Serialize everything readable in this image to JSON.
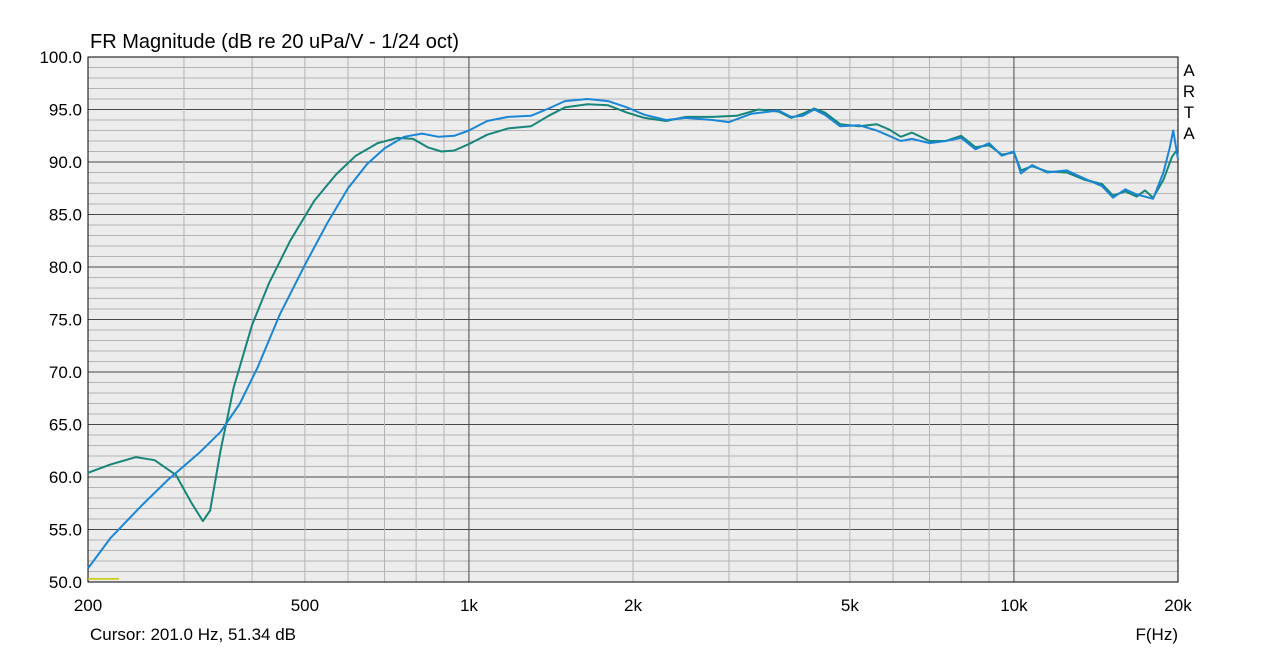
{
  "chart_data": {
    "type": "line",
    "title": "FR Magnitude (dB re 20 uPa/V - 1/24 oct)",
    "xlabel": "F(Hz)",
    "ylabel": "",
    "x_scale": "log",
    "xlim": [
      200,
      20000
    ],
    "ylim": [
      50,
      100
    ],
    "grid": true,
    "x_tick_labels": [
      {
        "value": 200,
        "label": "200"
      },
      {
        "value": 500,
        "label": "500"
      },
      {
        "value": 1000,
        "label": "1k"
      },
      {
        "value": 2000,
        "label": "2k"
      },
      {
        "value": 5000,
        "label": "5k"
      },
      {
        "value": 10000,
        "label": "10k"
      },
      {
        "value": 20000,
        "label": "20k"
      }
    ],
    "y_tick_labels": [
      {
        "value": 100,
        "label": "100.0"
      },
      {
        "value": 95,
        "label": "95.0"
      },
      {
        "value": 90,
        "label": "90.0"
      },
      {
        "value": 85,
        "label": "85.0"
      },
      {
        "value": 80,
        "label": "80.0"
      },
      {
        "value": 75,
        "label": "75.0"
      },
      {
        "value": 70,
        "label": "70.0"
      },
      {
        "value": 65,
        "label": "65.0"
      },
      {
        "value": 60,
        "label": "60.0"
      },
      {
        "value": 55,
        "label": "55.0"
      },
      {
        "value": 50,
        "label": "50.0"
      }
    ],
    "series": [
      {
        "color": "#16857a",
        "points": [
          [
            200,
            60.4
          ],
          [
            220,
            61.2
          ],
          [
            245,
            61.9
          ],
          [
            265,
            61.6
          ],
          [
            290,
            60.2
          ],
          [
            310,
            57.5
          ],
          [
            325,
            55.8
          ],
          [
            335,
            56.8
          ],
          [
            350,
            62.5
          ],
          [
            370,
            68.5
          ],
          [
            400,
            74.5
          ],
          [
            430,
            78.5
          ],
          [
            470,
            82.5
          ],
          [
            520,
            86.3
          ],
          [
            570,
            88.8
          ],
          [
            620,
            90.6
          ],
          [
            680,
            91.8
          ],
          [
            740,
            92.3
          ],
          [
            790,
            92.2
          ],
          [
            840,
            91.4
          ],
          [
            890,
            91.0
          ],
          [
            940,
            91.1
          ],
          [
            1000,
            91.7
          ],
          [
            1080,
            92.6
          ],
          [
            1180,
            93.2
          ],
          [
            1300,
            93.4
          ],
          [
            1400,
            94.4
          ],
          [
            1500,
            95.2
          ],
          [
            1650,
            95.5
          ],
          [
            1800,
            95.4
          ],
          [
            1950,
            94.7
          ],
          [
            2100,
            94.2
          ],
          [
            2300,
            93.9
          ],
          [
            2500,
            94.3
          ],
          [
            2800,
            94.3
          ],
          [
            3100,
            94.4
          ],
          [
            3400,
            95.0
          ],
          [
            3700,
            94.8
          ],
          [
            3900,
            94.2
          ],
          [
            4100,
            94.6
          ],
          [
            4300,
            95.1
          ],
          [
            4500,
            94.7
          ],
          [
            4800,
            93.6
          ],
          [
            5200,
            93.4
          ],
          [
            5600,
            93.6
          ],
          [
            5900,
            93.1
          ],
          [
            6200,
            92.4
          ],
          [
            6500,
            92.8
          ],
          [
            7000,
            92.0
          ],
          [
            7500,
            92.0
          ],
          [
            8000,
            92.5
          ],
          [
            8500,
            91.4
          ],
          [
            9000,
            91.6
          ],
          [
            9500,
            90.7
          ],
          [
            10000,
            90.9
          ],
          [
            10300,
            89.2
          ],
          [
            10800,
            89.6
          ],
          [
            11500,
            89.1
          ],
          [
            12500,
            89.0
          ],
          [
            13500,
            88.3
          ],
          [
            14500,
            87.9
          ],
          [
            15200,
            86.8
          ],
          [
            16000,
            87.2
          ],
          [
            16800,
            86.7
          ],
          [
            17400,
            87.3
          ],
          [
            18000,
            86.6
          ],
          [
            18800,
            88.3
          ],
          [
            19500,
            90.5
          ],
          [
            20000,
            91.3
          ]
        ]
      },
      {
        "color": "#1a86d8",
        "points": [
          [
            200,
            51.3
          ],
          [
            220,
            54.2
          ],
          [
            250,
            57.2
          ],
          [
            280,
            59.7
          ],
          [
            320,
            62.3
          ],
          [
            350,
            64.3
          ],
          [
            380,
            67.0
          ],
          [
            410,
            70.5
          ],
          [
            450,
            75.5
          ],
          [
            500,
            80.2
          ],
          [
            550,
            84.2
          ],
          [
            600,
            87.5
          ],
          [
            650,
            89.8
          ],
          [
            700,
            91.3
          ],
          [
            760,
            92.4
          ],
          [
            820,
            92.7
          ],
          [
            880,
            92.4
          ],
          [
            940,
            92.5
          ],
          [
            1000,
            93.0
          ],
          [
            1080,
            93.9
          ],
          [
            1180,
            94.3
          ],
          [
            1300,
            94.4
          ],
          [
            1400,
            95.1
          ],
          [
            1500,
            95.8
          ],
          [
            1650,
            96.0
          ],
          [
            1800,
            95.8
          ],
          [
            1950,
            95.2
          ],
          [
            2100,
            94.5
          ],
          [
            2300,
            94.0
          ],
          [
            2500,
            94.2
          ],
          [
            2800,
            94.0
          ],
          [
            3000,
            93.8
          ],
          [
            3300,
            94.6
          ],
          [
            3700,
            94.9
          ],
          [
            3900,
            94.3
          ],
          [
            4100,
            94.4
          ],
          [
            4300,
            95.0
          ],
          [
            4500,
            94.5
          ],
          [
            4800,
            93.4
          ],
          [
            5200,
            93.5
          ],
          [
            5600,
            93.0
          ],
          [
            5900,
            92.5
          ],
          [
            6200,
            92.0
          ],
          [
            6500,
            92.2
          ],
          [
            7000,
            91.8
          ],
          [
            7500,
            92.0
          ],
          [
            8000,
            92.3
          ],
          [
            8500,
            91.2
          ],
          [
            9000,
            91.8
          ],
          [
            9500,
            90.6
          ],
          [
            10000,
            91.0
          ],
          [
            10300,
            88.9
          ],
          [
            10800,
            89.7
          ],
          [
            11500,
            89.0
          ],
          [
            12500,
            89.2
          ],
          [
            13500,
            88.4
          ],
          [
            14500,
            87.7
          ],
          [
            15200,
            86.6
          ],
          [
            16000,
            87.4
          ],
          [
            16800,
            86.9
          ],
          [
            17400,
            86.7
          ],
          [
            18000,
            86.5
          ],
          [
            18800,
            89.0
          ],
          [
            19300,
            91.3
          ],
          [
            19600,
            93.0
          ],
          [
            20000,
            90.3
          ]
        ]
      },
      {
        "color": "#c8c800",
        "points": [
          [
            200,
            50.3
          ],
          [
            228,
            50.3
          ]
        ]
      }
    ]
  },
  "watermark": [
    "A",
    "R",
    "T",
    "A"
  ],
  "cursor_readout": "Cursor: 201.0 Hz, 51.34 dB",
  "x_axis_unit": "F(Hz)"
}
